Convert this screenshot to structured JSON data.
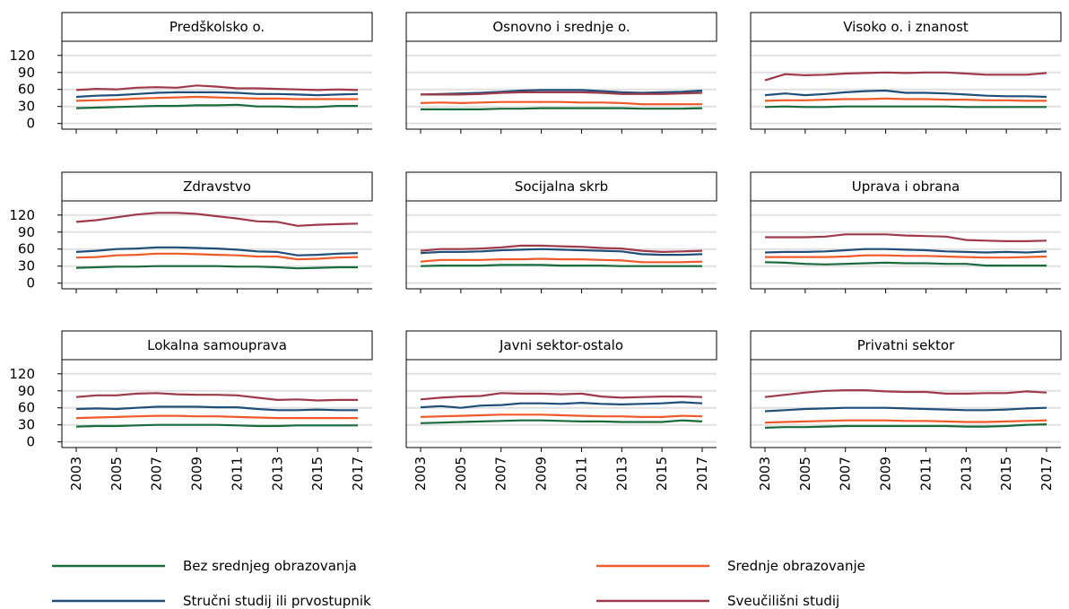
{
  "chart_data": {
    "type": "line",
    "x": [
      2003,
      2004,
      2005,
      2006,
      2007,
      2008,
      2009,
      2010,
      2011,
      2012,
      2013,
      2014,
      2015,
      2016,
      2017
    ],
    "x_ticks": [
      2003,
      2005,
      2007,
      2009,
      2011,
      2013,
      2015,
      2017
    ],
    "y_ticks": [
      0,
      30,
      60,
      90,
      120
    ],
    "ylim": [
      -10,
      145
    ],
    "grid": true,
    "legend_position": "bottom",
    "series_order": [
      "bez",
      "srednje",
      "strucni",
      "sveuc"
    ],
    "series": {
      "bez": {
        "name": "Bez srednjeg obrazovanja",
        "color": "#1a6b3c"
      },
      "srednje": {
        "name": "Srednje obrazovanje",
        "color": "#f05a28"
      },
      "strucni": {
        "name": "Stručni studij ili prvostupnik",
        "color": "#1f4e79"
      },
      "sveuc": {
        "name": "Sveučilišni studij",
        "color": "#9e3a4a"
      }
    },
    "panels": [
      {
        "title": "Predškolsko o.",
        "values": {
          "bez": [
            27,
            28,
            29,
            30,
            31,
            31,
            32,
            32,
            33,
            30,
            30,
            29,
            29,
            31,
            31
          ],
          "srednje": [
            40,
            41,
            42,
            44,
            45,
            46,
            47,
            46,
            45,
            44,
            44,
            43,
            43,
            43,
            43
          ],
          "strucni": [
            47,
            49,
            50,
            52,
            54,
            55,
            55,
            55,
            54,
            52,
            52,
            51,
            50,
            51,
            52
          ],
          "sveuc": [
            59,
            61,
            60,
            63,
            64,
            63,
            67,
            65,
            62,
            62,
            61,
            60,
            59,
            60,
            59
          ]
        }
      },
      {
        "title": "Osnovno i srednje o.",
        "values": {
          "bez": [
            25,
            25,
            25,
            25,
            26,
            26,
            27,
            27,
            27,
            27,
            27,
            26,
            26,
            26,
            27
          ],
          "srednje": [
            36,
            37,
            36,
            37,
            38,
            38,
            38,
            38,
            37,
            37,
            36,
            34,
            34,
            34,
            34
          ],
          "strucni": [
            51,
            52,
            53,
            54,
            56,
            58,
            59,
            59,
            59,
            57,
            55,
            54,
            55,
            56,
            58
          ],
          "sveuc": [
            51,
            51,
            51,
            52,
            54,
            55,
            55,
            55,
            55,
            54,
            52,
            52,
            52,
            53,
            54
          ]
        }
      },
      {
        "title": "Visoko o. i znanost",
        "values": {
          "bez": [
            29,
            30,
            29,
            29,
            30,
            30,
            30,
            30,
            30,
            30,
            29,
            29,
            29,
            29,
            29
          ],
          "srednje": [
            40,
            41,
            41,
            42,
            43,
            43,
            44,
            43,
            43,
            42,
            42,
            41,
            41,
            40,
            40
          ],
          "strucni": [
            50,
            53,
            50,
            52,
            55,
            57,
            58,
            54,
            54,
            53,
            51,
            49,
            48,
            48,
            47
          ],
          "sveuc": [
            76,
            87,
            85,
            86,
            88,
            89,
            90,
            89,
            90,
            90,
            88,
            86,
            86,
            86,
            89
          ]
        }
      },
      {
        "title": "Zdravstvo",
        "values": {
          "bez": [
            27,
            28,
            29,
            29,
            30,
            30,
            30,
            30,
            29,
            29,
            28,
            26,
            27,
            28,
            28
          ],
          "srednje": [
            45,
            46,
            49,
            50,
            52,
            52,
            51,
            50,
            49,
            47,
            47,
            42,
            43,
            45,
            46
          ],
          "strucni": [
            55,
            57,
            60,
            61,
            63,
            63,
            62,
            61,
            59,
            56,
            55,
            49,
            50,
            52,
            53
          ],
          "sveuc": [
            108,
            111,
            116,
            121,
            124,
            124,
            122,
            118,
            114,
            109,
            108,
            101,
            103,
            104,
            105
          ]
        }
      },
      {
        "title": "Socijalna skrb",
        "values": {
          "bez": [
            30,
            31,
            31,
            31,
            32,
            32,
            32,
            31,
            31,
            31,
            30,
            30,
            30,
            30,
            30
          ],
          "srednje": [
            38,
            41,
            41,
            41,
            42,
            42,
            43,
            42,
            42,
            41,
            40,
            37,
            37,
            37,
            38
          ],
          "strucni": [
            53,
            55,
            55,
            56,
            58,
            59,
            60,
            59,
            58,
            57,
            56,
            51,
            50,
            50,
            51
          ],
          "sveuc": [
            57,
            60,
            60,
            61,
            63,
            66,
            66,
            65,
            64,
            62,
            61,
            57,
            55,
            56,
            57
          ]
        }
      },
      {
        "title": "Uprava i obrana",
        "values": {
          "bez": [
            37,
            36,
            34,
            33,
            34,
            35,
            36,
            35,
            35,
            34,
            34,
            31,
            31,
            31,
            31
          ],
          "srednje": [
            46,
            46,
            46,
            46,
            47,
            49,
            49,
            48,
            48,
            47,
            46,
            45,
            45,
            46,
            47
          ],
          "strucni": [
            54,
            55,
            55,
            56,
            58,
            60,
            60,
            59,
            58,
            56,
            55,
            54,
            55,
            54,
            56
          ],
          "sveuc": [
            81,
            81,
            81,
            82,
            86,
            86,
            86,
            84,
            83,
            82,
            76,
            75,
            74,
            74,
            75
          ]
        }
      },
      {
        "title": "Lokalna samouprava",
        "values": {
          "bez": [
            27,
            28,
            28,
            29,
            30,
            30,
            30,
            30,
            29,
            28,
            28,
            29,
            29,
            29,
            29
          ],
          "srednje": [
            42,
            43,
            44,
            45,
            46,
            46,
            45,
            45,
            44,
            43,
            42,
            42,
            42,
            42,
            42
          ],
          "strucni": [
            58,
            59,
            58,
            60,
            62,
            62,
            62,
            61,
            61,
            58,
            56,
            56,
            57,
            56,
            56
          ],
          "sveuc": [
            79,
            82,
            82,
            85,
            86,
            84,
            83,
            83,
            82,
            78,
            74,
            75,
            73,
            74,
            74
          ]
        }
      },
      {
        "title": "Javni sektor-ostalo",
        "values": {
          "bez": [
            33,
            34,
            35,
            36,
            37,
            38,
            38,
            37,
            36,
            36,
            35,
            35,
            35,
            38,
            36
          ],
          "srednje": [
            44,
            45,
            46,
            47,
            48,
            48,
            48,
            47,
            46,
            45,
            45,
            44,
            44,
            46,
            45
          ],
          "strucni": [
            61,
            63,
            60,
            64,
            65,
            68,
            68,
            67,
            69,
            67,
            66,
            67,
            68,
            70,
            68
          ],
          "sveuc": [
            75,
            78,
            80,
            81,
            86,
            85,
            85,
            84,
            85,
            80,
            78,
            79,
            80,
            80,
            79
          ]
        }
      },
      {
        "title": "Privatni sektor",
        "values": {
          "bez": [
            25,
            26,
            26,
            27,
            28,
            28,
            28,
            28,
            28,
            28,
            27,
            27,
            28,
            30,
            31
          ],
          "srednje": [
            34,
            35,
            36,
            37,
            38,
            38,
            38,
            37,
            37,
            36,
            35,
            35,
            36,
            37,
            38
          ],
          "strucni": [
            54,
            56,
            58,
            59,
            60,
            60,
            60,
            59,
            58,
            57,
            56,
            56,
            57,
            59,
            60
          ],
          "sveuc": [
            79,
            83,
            87,
            90,
            91,
            91,
            89,
            88,
            88,
            85,
            85,
            86,
            86,
            89,
            87
          ]
        }
      }
    ]
  }
}
